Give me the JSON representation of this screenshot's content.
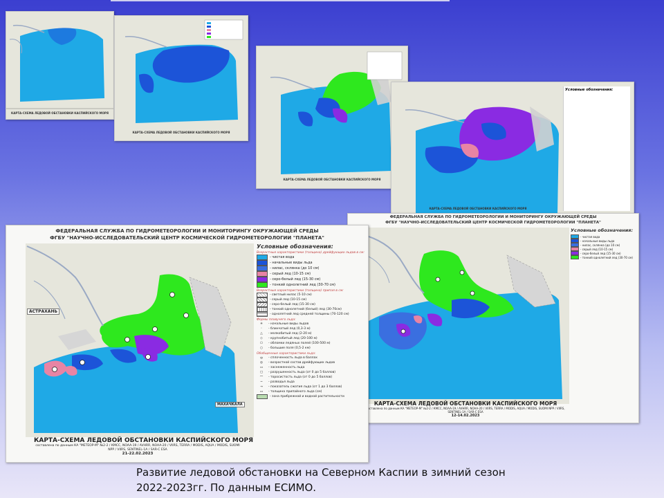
{
  "maps": [
    {
      "agency": "ФЕДЕРАЛЬНАЯ СЛУЖБА ПО ГИДРОМЕТЕОРОЛОГИИ И МОНИТОРИНГУ ОКРУЖАЮЩЕЙ СРЕДЫ",
      "center": "ФГБУ \"НАУЧНО-ИССЛЕДОВАТЕЛЬСКИЙ ЦЕНТР КОСМИЧЕСКОЙ ГИДРОМЕТЕОРОЛОГИИ \"ПЛАНЕТА\"",
      "legend_title": "Условные обозначения:",
      "section_age": "Возрастные характеристики (толщина) дрейфующих льдов в см:",
      "legend_items": [
        "- чистая вода",
        "- начальные виды льда",
        "- нилас, склянка (до 10 см)",
        "- серый лед (10-15 см)",
        "- серо-белый лед (15-30 см)",
        "- тонкий однолетний лед (30-70 см)"
      ],
      "section_fast": "Возрастные характеристики (толщина) припая в см:",
      "fast_items": [
        "- светлый нилас (5-10 см)",
        "- серый лед (10-15 см)",
        "- серо-белый лед (15-30 см)",
        "- тонкий однолетний (белый) лед (30-70см)",
        "- однолетний лед средней толщины (70-120 см)"
      ],
      "section_forms": "Формы плавучего льда:",
      "form_items": [
        "- начальные виды льдов",
        "- блинчатый лед (0,3-3 м)",
        "- мелкобитый лед (2-20 м)",
        "- крупнобитый лед (20-100 м)",
        "- обломки ледяных полей (100-500 м)",
        "- большие поля (0,5-2 км)"
      ],
      "section_general": "Обобщенные характеристики льда:",
      "general_items": [
        "- сплоченность льда в баллах",
        "- возрастной состав дрейфующих льдов",
        "- заснеженность льда",
        "- разрушенность льда (от 0 до 5 баллов)",
        "- торосистость льда (от 0 до 5 баллов)",
        "- разводья льда",
        "- показатель сжатия льда (от 1 до 3 баллов)",
        "- толщина припайного льда (см)",
        "- зона прибрежной и водной растительности"
      ],
      "place": "АСТРАХАНЬ",
      "place2": "МАХАЧКАЛА",
      "title": "КАРТА-СХЕМА ЛЕДОВОЙ ОБСТАНОВКИ КАСПИЙСКОГО МОРЯ",
      "subtitle": "составлена по данным КА \"МЕТЕОР-М\" №2-2 / КМСС, NOAA-19 / AVHRR, NOAA-20 / VIIRS, TERRA / MODIS, AQUA / MODIS, SUOMI NPP / VIIRS, SENTINEL-1A / SAR-C ESA",
      "date": "21-22.02.2023"
    },
    {
      "agency": "ФЕДЕРАЛЬНАЯ СЛУЖБА ПО ГИДРОМЕТЕОРОЛОГИИ И МОНИТОРИНГУ ОКРУЖАЮЩЕЙ СРЕДЫ",
      "center": "ФГБУ \"НАУЧНО-ИССЛЕДОВАТЕЛЬСКИЙ ЦЕНТР КОСМИЧЕСКОЙ ГИДРОМЕТЕОРОЛОГИИ \"ПЛАНЕТА\"",
      "legend_title": "Условные обозначения:",
      "title": "КАРТА-СХЕМА ЛЕДОВОЙ ОБСТАНОВКИ КАСПИЙСКОГО МОРЯ",
      "subtitle": "составлена по данным КА \"МЕТЕОР-М\" №2-2 / КМСС, NOAA-19 / AVHRR, NOAA-20 / VIIRS, TERRA / MODIS, AQUA / MODIS, SUOMI NPP / VIIRS, SENTINEL-1A / SAR-C ESA",
      "date": "12-14.02.2023"
    }
  ],
  "small_maps": [
    {
      "title": "КАРТА-СХЕМА ЛЕДОВОЙ ОБСТАНОВКИ КАСПИЙСКОГО МОРЯ"
    },
    {
      "title": "КАРТА-СХЕМА ЛЕДОВОЙ ОБСТАНОВКИ КАСПИЙСКОГО МОРЯ"
    },
    {
      "title": "КАРТА-СХЕМА ЛЕДОВОЙ ОБСТАНОВКИ КАСПИЙСКОГО МОРЯ"
    },
    {
      "title": "КАРТА-СХЕМА ЛЕДОВОЙ ОБСТАНОВКИ КАСПИЙСКОГО МОРЯ"
    }
  ],
  "colors": {
    "clear_water": "#1fa9e6",
    "initial_ice": "#1c54d8",
    "nilas": "#3a6fe0",
    "grey_ice": "#e884a4",
    "grey_white_ice": "#8a2be2",
    "thin_first_year": "#2ee81e",
    "land": "#e6e6dc",
    "river": "#9aa9c4"
  },
  "caption": {
    "line1": "Развитие ледовой обстановки на Северном Каспии в зимний сезон",
    "line2": "2022-2023гг. По данным ЕСИМО."
  }
}
